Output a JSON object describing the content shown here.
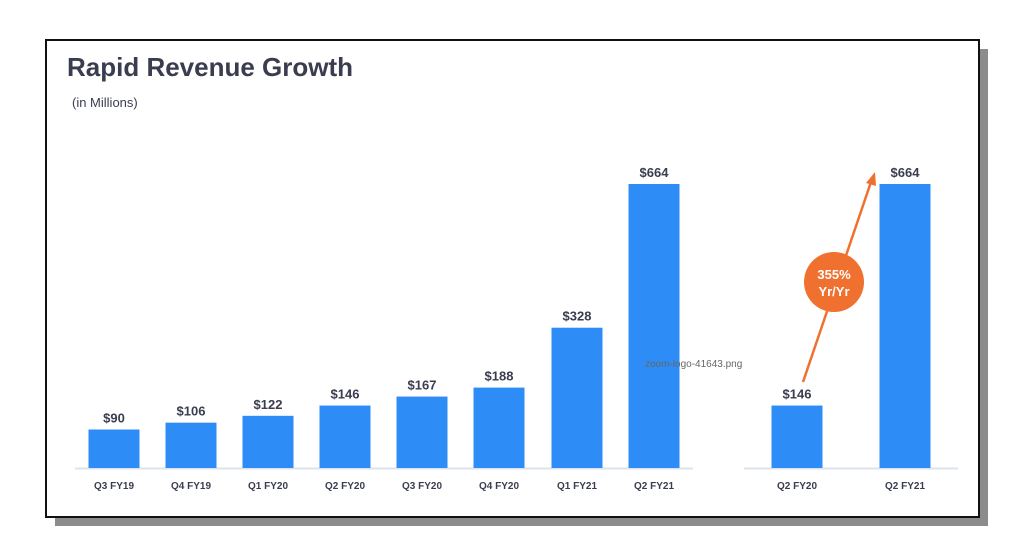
{
  "chart_data": [
    {
      "type": "bar",
      "title": "Rapid Revenue Growth",
      "subtitle": "(in Millions)",
      "categories": [
        "Q3 FY19",
        "Q4 FY19",
        "Q1 FY20",
        "Q2 FY20",
        "Q3 FY20",
        "Q4 FY20",
        "Q1 FY21",
        "Q2 FY21"
      ],
      "values": [
        90,
        106,
        122,
        146,
        167,
        188,
        328,
        664
      ],
      "data_labels": [
        "$90",
        "$106",
        "$122",
        "$146",
        "$167",
        "$188",
        "$328",
        "$664"
      ],
      "grid": false,
      "bar_color": "#2e8cf7"
    },
    {
      "type": "bar",
      "categories": [
        "Q2 FY20",
        "Q2 FY21"
      ],
      "values": [
        146,
        664
      ],
      "data_labels": [
        "$146",
        "$664"
      ],
      "annotation": {
        "line1": "355%",
        "line2": "Yr/Yr",
        "color": "#f07030"
      },
      "bar_color": "#2e8cf7"
    }
  ],
  "watermark": "zoom-logo-41643.png"
}
